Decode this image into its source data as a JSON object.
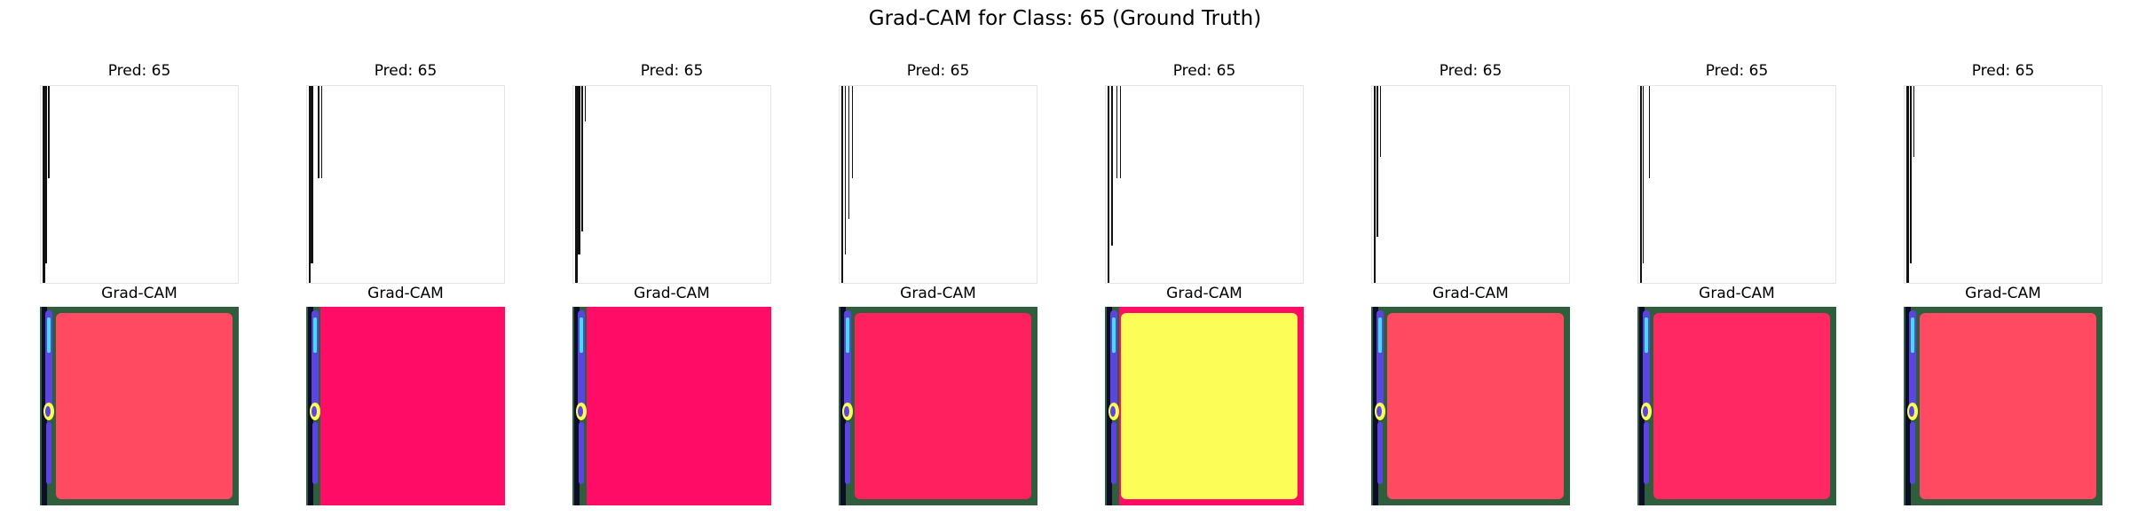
{
  "figure": {
    "suptitle": "Grad-CAM for Class: 65 (Ground Truth)",
    "colors": {
      "background": "#ffffff",
      "heat_green": "#2e5e3c",
      "heat_blue": "#5b45e0",
      "heat_cyan": "#3fe0ff",
      "heat_red_light": "#ff4a62",
      "heat_red": "#ff1f5e",
      "heat_red_deep": "#ff0c66",
      "heat_yellow": "#fdfd57"
    }
  },
  "samples": [
    {
      "input_title": "Pred: 65",
      "cam_title": "Grad-CAM",
      "heat_color": "#ff4a62",
      "frame": "green"
    },
    {
      "input_title": "Pred: 65",
      "cam_title": "Grad-CAM",
      "heat_color": "#ff0c66",
      "frame": "none"
    },
    {
      "input_title": "Pred: 65",
      "cam_title": "Grad-CAM",
      "heat_color": "#ff0c66",
      "frame": "none"
    },
    {
      "input_title": "Pred: 65",
      "cam_title": "Grad-CAM",
      "heat_color": "#ff2060",
      "frame": "green"
    },
    {
      "input_title": "Pred: 65",
      "cam_title": "Grad-CAM",
      "heat_color": "#fdfd57",
      "frame": "red"
    },
    {
      "input_title": "Pred: 65",
      "cam_title": "Grad-CAM",
      "heat_color": "#ff4a62",
      "frame": "green"
    },
    {
      "input_title": "Pred: 65",
      "cam_title": "Grad-CAM",
      "heat_color": "#ff2863",
      "frame": "green"
    },
    {
      "input_title": "Pred: 65",
      "cam_title": "Grad-CAM",
      "heat_color": "#ff4a62",
      "frame": "green"
    }
  ]
}
